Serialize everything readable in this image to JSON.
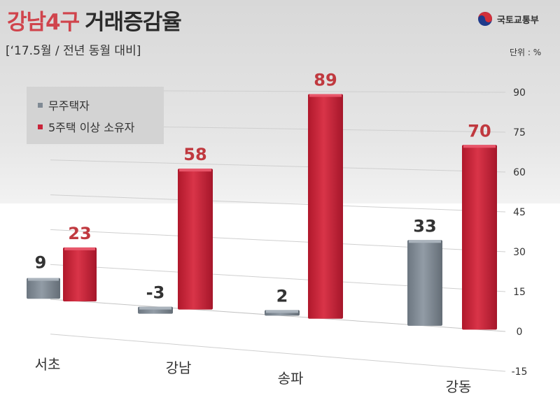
{
  "header": {
    "title_accent": "강남4구",
    "title_main": "거래증감율",
    "subtitle": "[‘17.5월  / 전년 동월 대비]",
    "org_name": "국토교통부",
    "unit": "단위 : %"
  },
  "colors": {
    "title_accent": "#d0444c",
    "series_gray": "#808a94",
    "series_red": "#c9243a",
    "value_red": "#c0393f",
    "value_gray": "#333333"
  },
  "chart_data": {
    "type": "bar",
    "categories": [
      "서초",
      "강남",
      "송파",
      "강동"
    ],
    "series": [
      {
        "name": "무주택자",
        "values": [
          9,
          -3,
          2,
          33
        ]
      },
      {
        "name": "5주택 이상 소유자",
        "values": [
          23,
          58,
          89,
          70
        ]
      }
    ],
    "y_ticks": [
      90,
      75,
      60,
      45,
      30,
      15,
      0,
      -15
    ],
    "ylim": [
      -15,
      90
    ],
    "legend_position": "top-left",
    "grid": true
  }
}
